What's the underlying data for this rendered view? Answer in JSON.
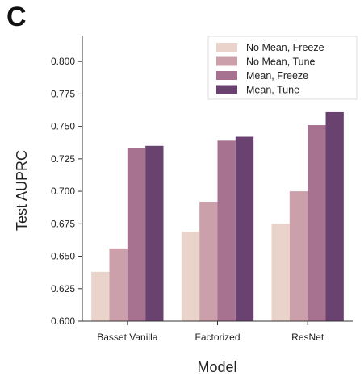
{
  "panel_label": "C",
  "chart_data": {
    "type": "bar",
    "title": "",
    "xlabel": "Model",
    "ylabel": "Test AUPRC",
    "categories": [
      "Basset Vanilla",
      "Factorized",
      "ResNet"
    ],
    "ylim": [
      0.6,
      0.82
    ],
    "yticks": [
      "0.600",
      "0.625",
      "0.650",
      "0.675",
      "0.700",
      "0.725",
      "0.750",
      "0.775",
      "0.800"
    ],
    "legend_position": "top-right",
    "grid": false,
    "series": [
      {
        "name": "No Mean, Freeze",
        "color": "#ead3cb",
        "values": [
          0.638,
          0.669,
          0.675
        ]
      },
      {
        "name": "No Mean, Tune",
        "color": "#cba0aa",
        "values": [
          0.656,
          0.692,
          0.7
        ]
      },
      {
        "name": "Mean, Freeze",
        "color": "#a6728f",
        "values": [
          0.733,
          0.739,
          0.751
        ]
      },
      {
        "name": "Mean, Tune",
        "color": "#694270",
        "values": [
          0.735,
          0.742,
          0.761
        ]
      }
    ]
  }
}
